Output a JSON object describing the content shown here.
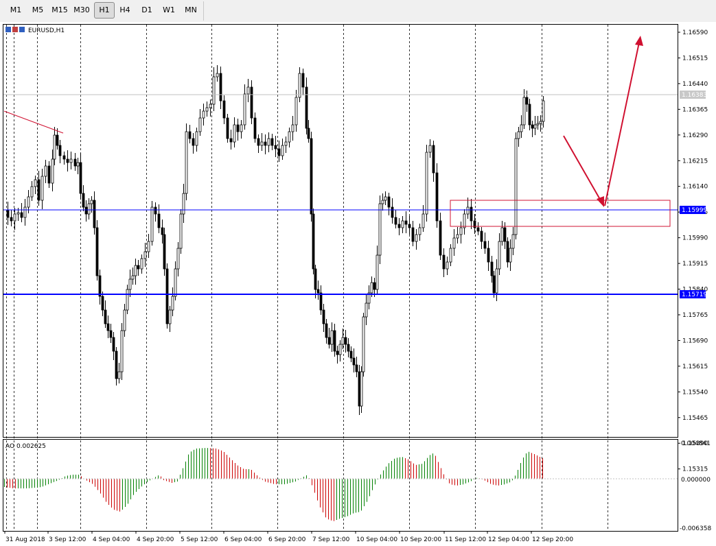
{
  "toolbar": {
    "timeframes": [
      "M1",
      "M5",
      "M15",
      "M30",
      "H1",
      "H4",
      "D1",
      "W1",
      "MN"
    ],
    "active": "H1"
  },
  "chart": {
    "symbol_label": "EURUSD,H1",
    "price_labels": [
      "1.16590",
      "1.16515",
      "1.16440",
      "1.16365",
      "1.16290",
      "1.16215",
      "1.16140",
      "1.16065",
      "1.15990",
      "1.15915",
      "1.15840",
      "1.15765",
      "1.15690",
      "1.15615",
      "1.15540",
      "1.15465",
      "1.15390",
      "1.15315"
    ],
    "current_price": "1.16383",
    "level_1": "1.15999",
    "level_2": "1.15719",
    "time_labels": [
      "31 Aug 2018",
      "3 Sep 12:00",
      "4 Sep 04:00",
      "4 Sep 20:00",
      "5 Sep 12:00",
      "6 Sep 04:00",
      "6 Sep 20:00",
      "7 Sep 12:00",
      "10 Sep 04:00",
      "10 Sep 20:00",
      "11 Sep 12:00",
      "12 Sep 04:00",
      "12 Sep 20:00"
    ],
    "colors": {
      "level_line": "#0000ff",
      "annotation": "#d01030",
      "ao_up": "#008000",
      "ao_down": "#cc0000"
    }
  },
  "indicator": {
    "label": "AO 0.002625",
    "scale_labels": [
      "0.004841",
      "0.000000",
      "-0.006358"
    ]
  },
  "chart_data": {
    "type": "candlestick",
    "symbol": "EURUSD",
    "timeframe": "H1",
    "ylim": [
      1.1527,
      1.1665
    ],
    "horizontal_levels": [
      1.15999,
      1.15719
    ],
    "current_price": 1.16383,
    "x": [
      "31 Aug 2018",
      "3 Sep 12:00",
      "4 Sep 04:00",
      "4 Sep 20:00",
      "5 Sep 12:00",
      "6 Sep 04:00",
      "6 Sep 20:00",
      "7 Sep 12:00",
      "10 Sep 04:00",
      "10 Sep 20:00",
      "11 Sep 12:00",
      "12 Sep 04:00",
      "12 Sep 20:00"
    ],
    "close": [
      1.1597,
      1.1625,
      1.1567,
      1.1586,
      1.1642,
      1.1628,
      1.1621,
      1.1565,
      1.1597,
      1.1617,
      1.1598,
      1.163,
      1.16383
    ],
    "indicator": {
      "name": "AO",
      "value": 0.002625,
      "ylim": [
        -0.006358,
        0.004841
      ]
    }
  }
}
